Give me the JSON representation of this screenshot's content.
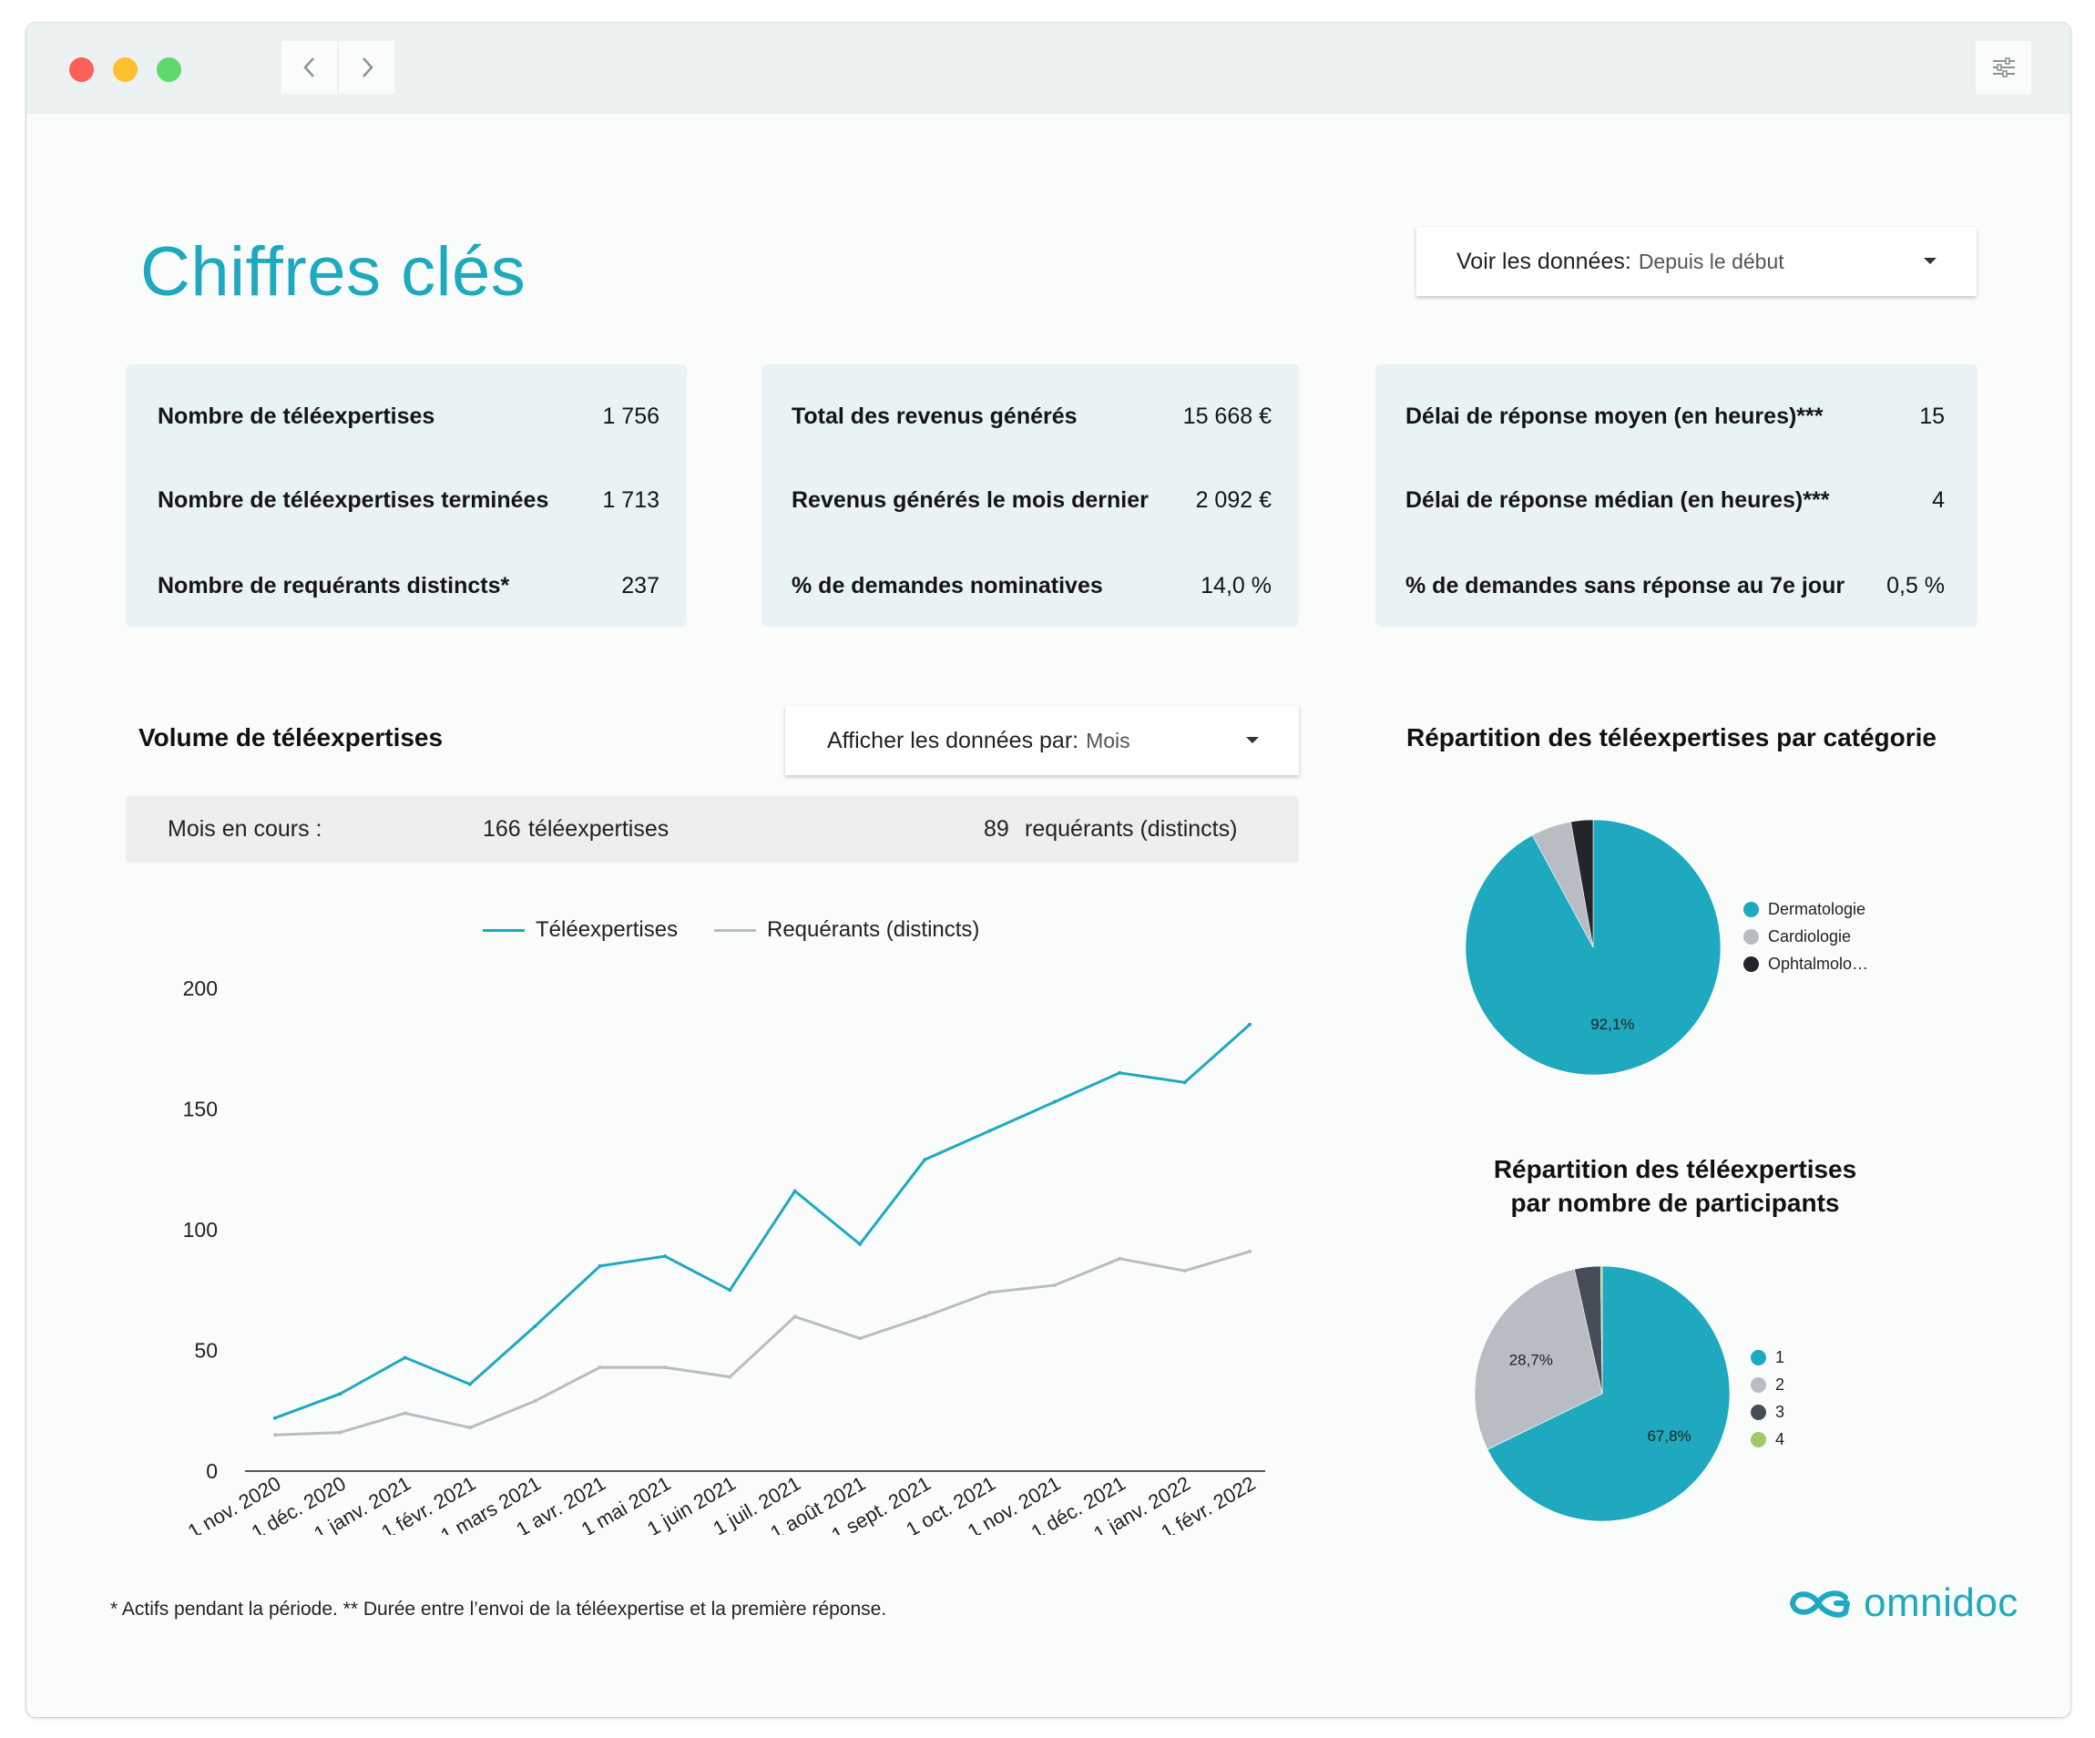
{
  "header": {
    "title": "Chiffres clés",
    "period_dropdown": {
      "label": "Voir les données",
      "value": "Depuis le début"
    }
  },
  "kpis": [
    {
      "rows": [
        {
          "label": "Nombre de téléexpertises",
          "value": "1 756"
        },
        {
          "label": "Nombre de téléexpertises terminées",
          "value": "1 713"
        },
        {
          "label": "Nombre de requérants distincts*",
          "value": "237"
        }
      ]
    },
    {
      "rows": [
        {
          "label": "Total des revenus générés",
          "value": "15 668 €"
        },
        {
          "label": "Revenus générés le mois dernier",
          "value": "2 092 €"
        },
        {
          "label": "% de demandes nominatives",
          "value": "14,0 %"
        }
      ]
    },
    {
      "rows": [
        {
          "label": "Délai de réponse moyen (en heures)***",
          "value": "15"
        },
        {
          "label": "Délai de réponse médian (en heures)***",
          "value": "4"
        },
        {
          "label": "% de demandes sans réponse au 7e jour",
          "value": "0,5 %"
        }
      ]
    }
  ],
  "volume": {
    "title": "Volume de téléexpertises",
    "group_dropdown": {
      "label": "Afficher les données par",
      "value": "Mois"
    },
    "current": {
      "label": "Mois en cours :",
      "count1": "166",
      "unit1": "téléexpertises",
      "count2": "89",
      "unit2": "requérants (distincts)"
    }
  },
  "chart_data": [
    {
      "type": "line",
      "x": [
        "1 nov. 2020",
        "1 déc. 2020",
        "1 janv. 2021",
        "1 févr. 2021",
        "1 mars 2021",
        "1 avr. 2021",
        "1 mai 2021",
        "1 juin 2021",
        "1 juil. 2021",
        "1 août 2021",
        "1 sept. 2021",
        "1 oct. 2021",
        "1 nov. 2021",
        "1 déc. 2021",
        "1 janv. 2022",
        "1 févr. 2022"
      ],
      "series": [
        {
          "name": "Téléexpertises",
          "color": "#1ea9bf",
          "values": [
            22,
            32,
            47,
            36,
            60,
            85,
            89,
            75,
            116,
            94,
            129,
            141,
            153,
            165,
            161,
            185
          ]
        },
        {
          "name": "Requérants (distincts)",
          "color": "#b8bcc3",
          "values": [
            15,
            16,
            24,
            18,
            29,
            43,
            43,
            39,
            64,
            55,
            64,
            74,
            77,
            88,
            83,
            91
          ]
        }
      ],
      "yticks": [
        0,
        50,
        100,
        150,
        200
      ],
      "ylim": [
        0,
        200
      ],
      "xlabel": "",
      "ylabel": "",
      "grid": false,
      "legend": "top"
    },
    {
      "type": "pie",
      "title": "Répartition des téléexpertises par catégorie",
      "labels": [
        "Dermatologie",
        "Cardiologie",
        "Ophtalmolo…"
      ],
      "values": [
        92.1,
        5.1,
        2.8
      ],
      "colors": [
        "#1ea9bf",
        "#b8bcc3",
        "#23252b"
      ],
      "data_labels": [
        "92,1%",
        "",
        ""
      ],
      "legend": "right"
    },
    {
      "type": "pie",
      "title": [
        "Répartition des téléexpertises",
        "par nombre de participants"
      ],
      "labels": [
        "1",
        "2",
        "3",
        "4"
      ],
      "values": [
        67.8,
        28.7,
        3.3,
        0.2
      ],
      "colors": [
        "#1ea9bf",
        "#b8bcc3",
        "#474d58",
        "#9ccc65"
      ],
      "data_labels": [
        "67,8%",
        "28,7%",
        "",
        ""
      ],
      "legend": "right"
    }
  ],
  "footer": {
    "footnote": "* Actifs pendant la période.  ** Durée entre l’envoi de la téléexpertise et la première réponse.",
    "brand": "omnidoc"
  },
  "colors": {
    "accent": "#1ea9bf",
    "card_bg": "#e9f2f4"
  },
  "icons": [
    "chevron-left-icon",
    "chevron-right-icon",
    "sliders-icon",
    "caret-down-icon",
    "omnidoc-logo-icon"
  ]
}
